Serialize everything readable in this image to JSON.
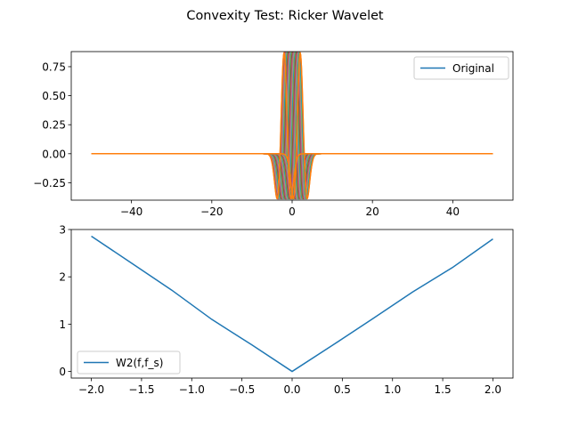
{
  "figure": {
    "title": "Convexity Test: Ricker Wavelet"
  },
  "chart_data": [
    {
      "type": "line",
      "panel": "top",
      "title": "",
      "xlabel": "",
      "ylabel": "",
      "xlim": [
        -55,
        55
      ],
      "ylim": [
        -0.4,
        0.88
      ],
      "x_ticks": [
        -40,
        -20,
        0,
        20,
        40
      ],
      "x_tick_labels": [
        "−40",
        "−20",
        "0",
        "20",
        "40"
      ],
      "y_ticks": [
        -0.25,
        0.0,
        0.25,
        0.5,
        0.75
      ],
      "y_tick_labels": [
        "−0.25",
        "0.00",
        "0.25",
        "0.50",
        "0.75"
      ],
      "x_range": [
        -50,
        50
      ],
      "grid": false,
      "legend": {
        "placement": "top-right",
        "entries": [
          "Original"
        ]
      },
      "wavelet": {
        "kind": "ricker",
        "peak": 0.867,
        "width": 1.0
      },
      "shift_range": [
        -2,
        2
      ],
      "shift_count": 41,
      "colors": [
        "#1f77b4",
        "#ff7f0e",
        "#2ca02c",
        "#d62728",
        "#9467bd",
        "#8c564b",
        "#e377c2",
        "#7f7f7f",
        "#bcbd22",
        "#17becf"
      ],
      "series": [
        {
          "name": "Original",
          "shift": 0,
          "color": "#1f77b4"
        }
      ]
    },
    {
      "type": "line",
      "panel": "bottom",
      "title": "",
      "xlabel": "",
      "ylabel": "",
      "xlim": [
        -2.2,
        2.2
      ],
      "ylim": [
        -0.14,
        3.0
      ],
      "x_ticks": [
        -2.0,
        -1.5,
        -1.0,
        -0.5,
        0.0,
        0.5,
        1.0,
        1.5,
        2.0
      ],
      "x_tick_labels": [
        "−2.0",
        "−1.5",
        "−1.0",
        "−0.5",
        "0.0",
        "0.5",
        "1.0",
        "1.5",
        "2.0"
      ],
      "y_ticks": [
        0,
        1,
        2,
        3
      ],
      "y_tick_labels": [
        "0",
        "1",
        "2",
        "3"
      ],
      "grid": false,
      "legend": {
        "placement": "bottom-left",
        "entries": [
          "W2(f,f_s)"
        ]
      },
      "series": [
        {
          "name": "W2(f,f_s)",
          "color": "#1f77b4",
          "x": [
            -2.0,
            -1.6,
            -1.2,
            -0.8,
            -0.4,
            0.0,
            0.4,
            0.8,
            1.2,
            1.6,
            2.0
          ],
          "y": [
            2.86,
            2.29,
            1.72,
            1.1,
            0.56,
            0.0,
            0.55,
            1.11,
            1.68,
            2.2,
            2.8
          ]
        }
      ]
    }
  ]
}
